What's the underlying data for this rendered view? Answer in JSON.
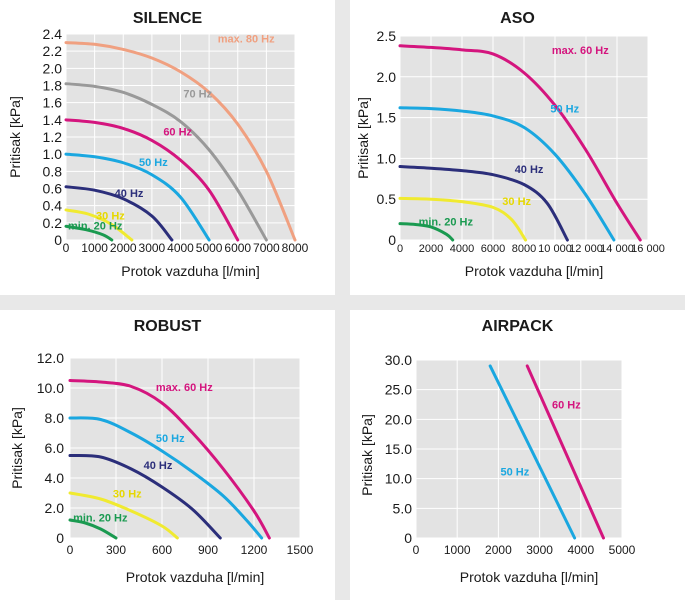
{
  "chart_data": [
    {
      "type": "line",
      "title": "SILENCE",
      "xlabel": "Protok vazduha [l/min]",
      "ylabel": "Pritisak [kPa]",
      "xlim": [
        0,
        8000
      ],
      "ylim": [
        0,
        2.4
      ],
      "xticks": [
        "0",
        "1000",
        "2000",
        "3000",
        "4000",
        "5000",
        "6000",
        "7000",
        "8000"
      ],
      "yticks": [
        "0",
        "0.2",
        "0.4",
        "0.6",
        "0.8",
        "1.0",
        "1.2",
        "1.4",
        "1.6",
        "1.8",
        "2.0",
        "2.2",
        "2.4"
      ],
      "grid": true,
      "series": [
        {
          "name": "max. 80 Hz",
          "color": "#f0a080",
          "x": [
            0,
            1000,
            2000,
            3000,
            4000,
            5000,
            6000,
            7000,
            8000
          ],
          "y": [
            2.3,
            2.28,
            2.22,
            2.12,
            1.96,
            1.72,
            1.35,
            0.8,
            0
          ]
        },
        {
          "name": "70 Hz",
          "color": "#999999",
          "x": [
            0,
            1000,
            2000,
            3000,
            4000,
            5000,
            6000,
            7000
          ],
          "y": [
            1.82,
            1.79,
            1.72,
            1.58,
            1.38,
            1.05,
            0.58,
            0
          ]
        },
        {
          "name": "60 Hz",
          "color": "#d4157e",
          "x": [
            0,
            1000,
            2000,
            3000,
            4000,
            5000,
            6000
          ],
          "y": [
            1.4,
            1.37,
            1.3,
            1.16,
            0.93,
            0.58,
            0
          ]
        },
        {
          "name": "50 Hz",
          "color": "#1aa7e0",
          "x": [
            0,
            1000,
            2000,
            3000,
            4000,
            5000
          ],
          "y": [
            1.0,
            0.97,
            0.9,
            0.76,
            0.5,
            0
          ]
        },
        {
          "name": "40 Hz",
          "color": "#2b2e7a",
          "x": [
            0,
            1000,
            2000,
            3000,
            3700
          ],
          "y": [
            0.62,
            0.58,
            0.48,
            0.28,
            0
          ]
        },
        {
          "name": "30 Hz",
          "color": "#f0ea30",
          "x": [
            0,
            800,
            1600,
            2300
          ],
          "y": [
            0.35,
            0.3,
            0.18,
            0
          ]
        },
        {
          "name": "min. 20 Hz",
          "color": "#1a9a50",
          "x": [
            0,
            700,
            1300,
            1600
          ],
          "y": [
            0.16,
            0.12,
            0.06,
            0
          ]
        }
      ]
    },
    {
      "type": "line",
      "title": "ASO",
      "xlabel": "Protok vazduha [l/min]",
      "ylabel": "Pritisak [kPa]",
      "xlim": [
        0,
        16000
      ],
      "ylim": [
        0,
        2.5
      ],
      "xticks": [
        "0",
        "2000",
        "4000",
        "6000",
        "8000",
        "10 000",
        "12 000",
        "14 000",
        "16 000"
      ],
      "yticks": [
        "0",
        "0.5",
        "1.0",
        "1.5",
        "2.0",
        "2.5"
      ],
      "grid": true,
      "series": [
        {
          "name": "max. 60 Hz",
          "color": "#d4157e",
          "x": [
            0,
            2000,
            4000,
            6000,
            8000,
            10000,
            12000,
            14000,
            15500
          ],
          "y": [
            2.38,
            2.36,
            2.33,
            2.28,
            2.05,
            1.65,
            1.1,
            0.45,
            0
          ]
        },
        {
          "name": "50 Hz",
          "color": "#1aa7e0",
          "x": [
            0,
            2000,
            4000,
            6000,
            8000,
            10000,
            12000,
            13800
          ],
          "y": [
            1.62,
            1.61,
            1.58,
            1.52,
            1.38,
            1.05,
            0.55,
            0
          ]
        },
        {
          "name": "40 Hz",
          "color": "#2b2e7a",
          "x": [
            0,
            2000,
            4000,
            6000,
            8000,
            9500,
            10800
          ],
          "y": [
            0.9,
            0.88,
            0.85,
            0.8,
            0.68,
            0.45,
            0
          ]
        },
        {
          "name": "30 Hz",
          "color": "#f0ea30",
          "x": [
            0,
            2000,
            4000,
            6000,
            7200,
            8100
          ],
          "y": [
            0.51,
            0.5,
            0.47,
            0.4,
            0.25,
            0
          ]
        },
        {
          "name": "min. 20 Hz",
          "color": "#1a9a50",
          "x": [
            0,
            1000,
            2000,
            3000,
            3400
          ],
          "y": [
            0.2,
            0.19,
            0.16,
            0.07,
            0
          ]
        }
      ]
    },
    {
      "type": "line",
      "title": "ROBUST",
      "xlabel": "Protok vazduha [l/min]",
      "ylabel": "Pritisak [kPa]",
      "xlim": [
        0,
        1500
      ],
      "ylim": [
        0,
        12.0
      ],
      "xticks": [
        "0",
        "300",
        "600",
        "900",
        "1200",
        "1500"
      ],
      "yticks": [
        "0",
        "2.0",
        "4.0",
        "6.0",
        "8.0",
        "10.0",
        "12.0"
      ],
      "grid": true,
      "series": [
        {
          "name": "max. 60 Hz",
          "color": "#d4157e",
          "x": [
            0,
            200,
            400,
            600,
            800,
            1000,
            1200,
            1300
          ],
          "y": [
            10.5,
            10.4,
            10.1,
            9.0,
            7.0,
            4.6,
            1.8,
            0
          ]
        },
        {
          "name": "50 Hz",
          "color": "#1aa7e0",
          "x": [
            0,
            200,
            400,
            600,
            800,
            1000,
            1150,
            1250
          ],
          "y": [
            8.0,
            7.9,
            7.0,
            5.8,
            4.4,
            2.8,
            1.2,
            0
          ]
        },
        {
          "name": "40 Hz",
          "color": "#2b2e7a",
          "x": [
            0,
            200,
            400,
            600,
            800,
            980
          ],
          "y": [
            5.5,
            5.4,
            4.6,
            3.4,
            1.9,
            0
          ]
        },
        {
          "name": "30 Hz",
          "color": "#f0ea30",
          "x": [
            0,
            200,
            400,
            600,
            700
          ],
          "y": [
            3.0,
            2.6,
            1.8,
            0.8,
            0
          ]
        },
        {
          "name": "min. 20 Hz",
          "color": "#1a9a50",
          "x": [
            0,
            100,
            200,
            300
          ],
          "y": [
            1.2,
            1.0,
            0.6,
            0
          ]
        }
      ]
    },
    {
      "type": "line",
      "title": "AIRPACK",
      "xlabel": "Protok vazduha [l/min]",
      "ylabel": "Pritisak [kPa]",
      "xlim": [
        0,
        5000
      ],
      "ylim": [
        0,
        30.0
      ],
      "xticks": [
        "0",
        "1000",
        "2000",
        "3000",
        "4000",
        "5000"
      ],
      "yticks": [
        "0",
        "5.0",
        "10.0",
        "15.0",
        "20.0",
        "25.0",
        "30.0"
      ],
      "grid": true,
      "series": [
        {
          "name": "60 Hz",
          "color": "#d4157e",
          "x": [
            2700,
            4550
          ],
          "y": [
            29.0,
            0
          ]
        },
        {
          "name": "50 Hz",
          "color": "#1aa7e0",
          "x": [
            1800,
            3850
          ],
          "y": [
            29.0,
            0
          ]
        }
      ]
    }
  ]
}
